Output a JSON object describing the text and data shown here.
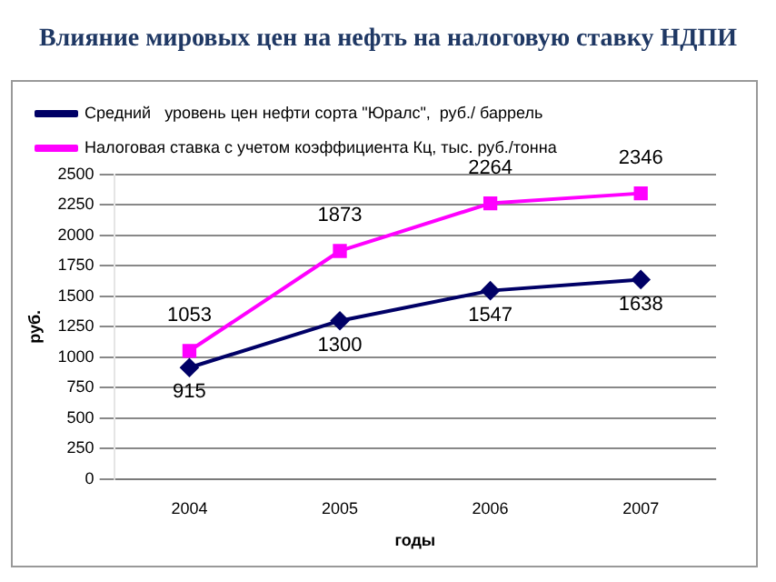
{
  "chart_data": {
    "type": "line",
    "title": "Влияние мировых цен на нефть на налоговую ставку НДПИ",
    "xlabel": "годы",
    "ylabel": "руб.",
    "categories": [
      "2004",
      "2005",
      "2006",
      "2007"
    ],
    "series": [
      {
        "name": "Средний   уровень цен нефти сорта \"Юралс\",  руб./ баррель",
        "color": "#000066",
        "values": [
          915,
          1300,
          1547,
          1638
        ],
        "marker": "diamond"
      },
      {
        "name": "Налоговая ставка с учетом коэффициента Кц, тыс. руб./тонна",
        "color": "#ff00ff",
        "values": [
          1053,
          1873,
          2264,
          2346
        ],
        "marker": "square"
      }
    ],
    "ylim": [
      0,
      2500
    ],
    "yticks": [
      0,
      250,
      500,
      750,
      1000,
      1250,
      1500,
      1750,
      2000,
      2250,
      2500
    ],
    "grid": "y",
    "legend": "top",
    "data_labels": true,
    "line_style": "solid"
  }
}
